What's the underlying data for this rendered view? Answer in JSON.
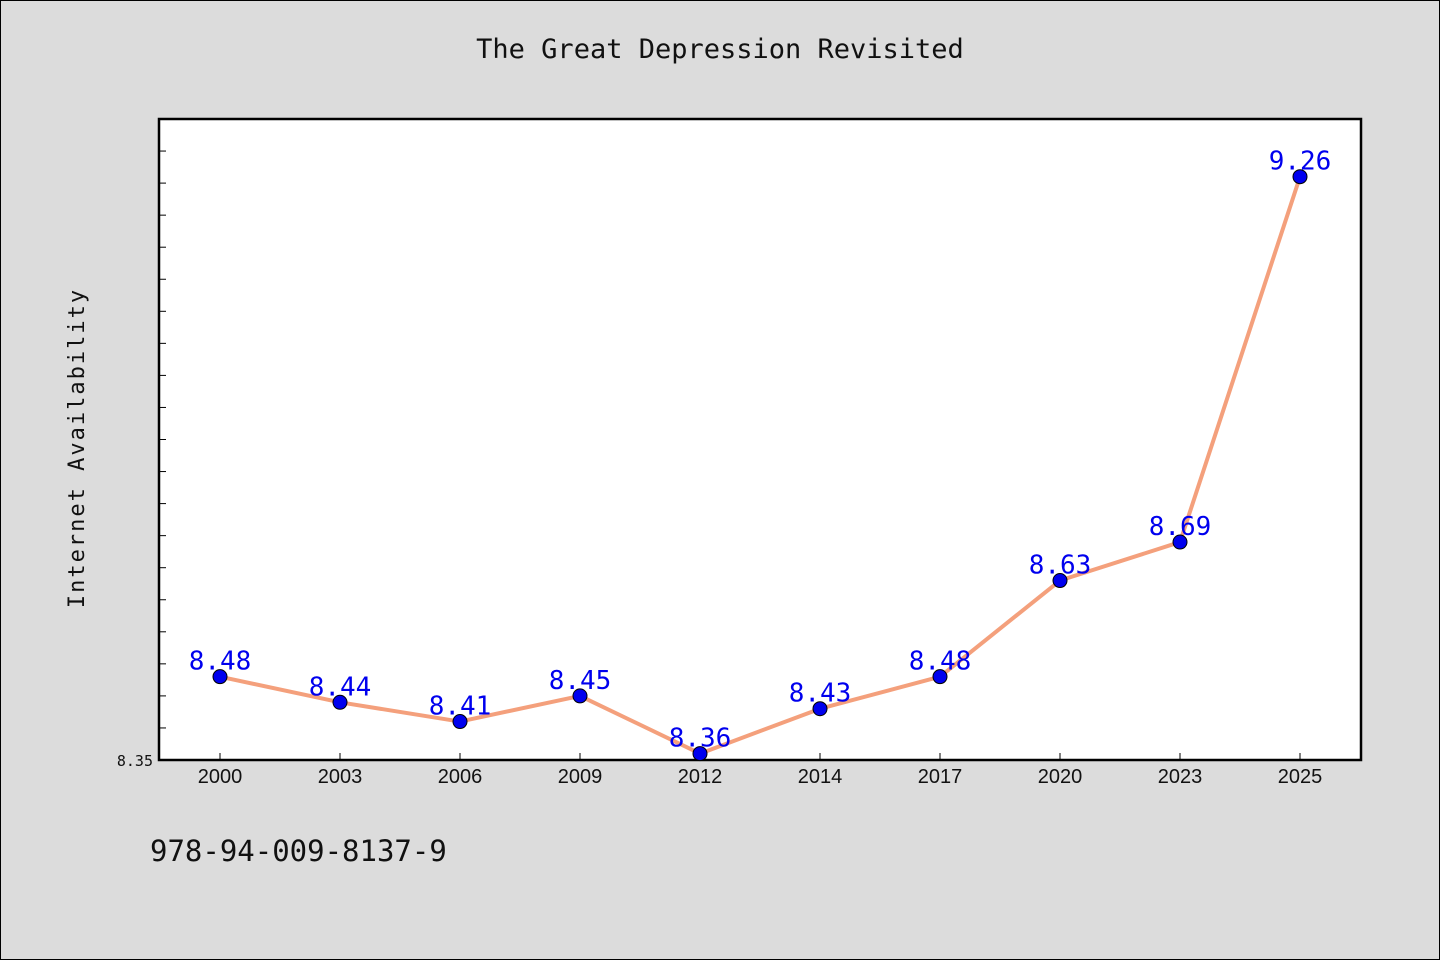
{
  "page": {
    "title": "The Great Depression Revisited",
    "footnote": "978-94-009-8137-9"
  },
  "chart_data": {
    "type": "line",
    "title": "The Great Depression Revisited",
    "xlabel": "",
    "ylabel": "Internet Availability",
    "categories": [
      "2000",
      "2003",
      "2006",
      "2009",
      "2012",
      "2014",
      "2017",
      "2020",
      "2023",
      "2025"
    ],
    "series": [
      {
        "values": [
          8.48,
          8.44,
          8.41,
          8.45,
          8.36,
          8.43,
          8.48,
          8.63,
          8.69,
          9.26
        ],
        "data_labels": [
          "8.48",
          "8.44",
          "8.41",
          "8.45",
          "8.36",
          "8.43",
          "8.48",
          "8.63",
          "8.69",
          "9.26"
        ],
        "line_color": "#f4a07c",
        "marker_color": "#0000ee",
        "label_color": "#0000ee"
      }
    ],
    "ylim": [
      8.35,
      9.35
    ],
    "yticks_labeled": [
      "8.35"
    ],
    "grid": false,
    "legend": "none",
    "plot_background": "#ffffff",
    "figure_background": "#dcdcdc"
  }
}
